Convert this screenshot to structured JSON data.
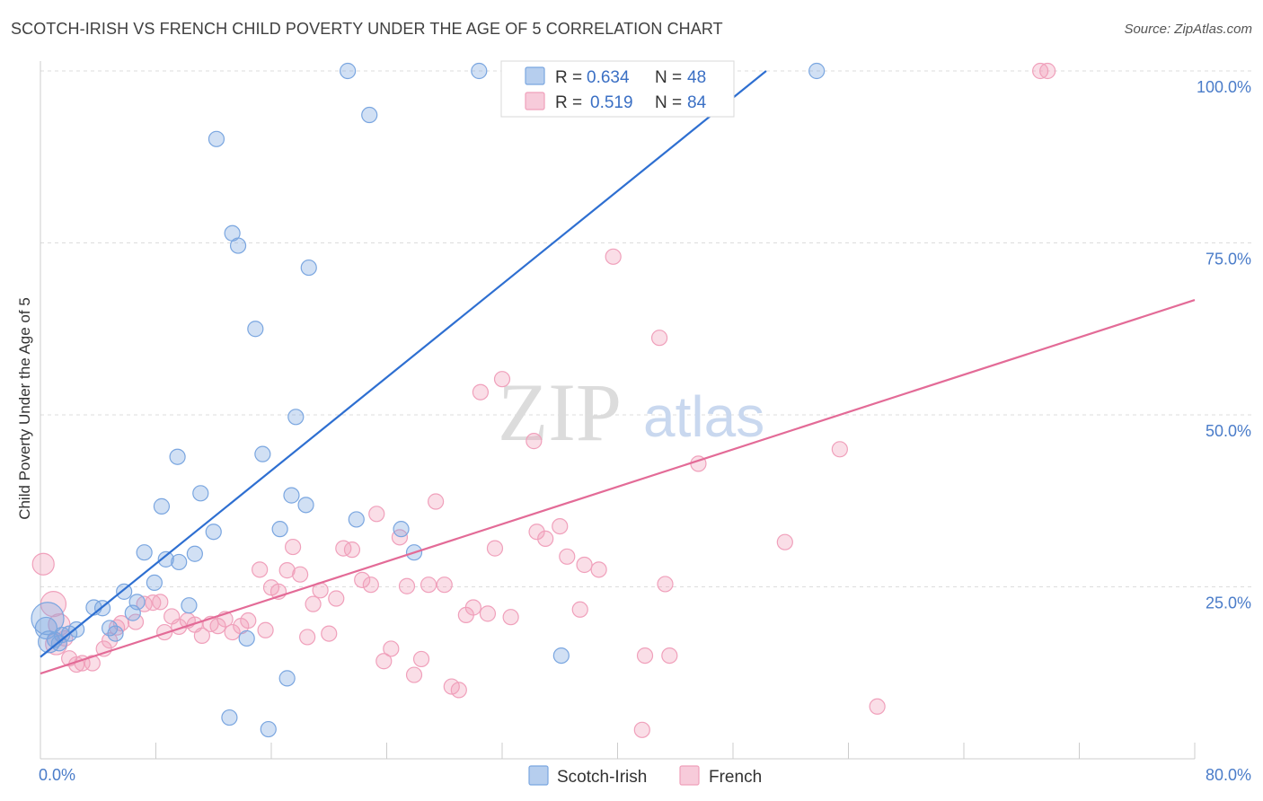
{
  "title": "SCOTCH-IRISH VS FRENCH CHILD POVERTY UNDER THE AGE OF 5 CORRELATION CHART",
  "source": "Source: ZipAtlas.com",
  "watermark": {
    "zip": "ZIP",
    "atlas": "atlas"
  },
  "legend": {
    "r_label": "R =",
    "n_label": "N =",
    "rows": [
      {
        "r": "0.634",
        "n": "48",
        "color": "#7aa6e0"
      },
      {
        "r": "0.519",
        "n": "84",
        "color": "#f0a0bb"
      }
    ]
  },
  "chart_data": {
    "type": "scatter",
    "title": "SCOTCH-IRISH VS FRENCH CHILD POVERTY UNDER THE AGE OF 5 CORRELATION CHART",
    "xlabel": "",
    "ylabel": "Child Poverty Under the Age of 5",
    "xlim": [
      0,
      80
    ],
    "ylim": [
      0,
      100
    ],
    "x_tick_labels": [
      "0.0%",
      "80.0%"
    ],
    "y_tick_labels": [
      "25.0%",
      "50.0%",
      "75.0%",
      "100.0%"
    ],
    "y_ticks": [
      25,
      50,
      75,
      100
    ],
    "grid": true,
    "legend_placement": "bottom-center",
    "series": [
      {
        "name": "Scotch-Irish",
        "color": "#7aa6e0",
        "trend": {
          "x": [
            0,
            50.3
          ],
          "y": [
            14.8,
            100
          ]
        },
        "points": [
          [
            0.5,
            20.4,
            18
          ],
          [
            0.4,
            19.0,
            12
          ],
          [
            0.6,
            17.0,
            12
          ],
          [
            1.0,
            17.3,
            10
          ],
          [
            1.3,
            16.8,
            10
          ],
          [
            1.5,
            18.0,
            10
          ],
          [
            2.0,
            18.2,
            10
          ],
          [
            2.5,
            18.8,
            10
          ],
          [
            3.7,
            22.0,
            10
          ],
          [
            4.3,
            21.9,
            10
          ],
          [
            4.8,
            19.0,
            10
          ],
          [
            5.2,
            18.2,
            10
          ],
          [
            5.8,
            24.3,
            10
          ],
          [
            6.4,
            21.2,
            10
          ],
          [
            6.7,
            22.8,
            10
          ],
          [
            7.2,
            30.0,
            10
          ],
          [
            7.9,
            25.6,
            10
          ],
          [
            8.4,
            36.7,
            10
          ],
          [
            8.7,
            29.0,
            10
          ],
          [
            9.6,
            28.6,
            10
          ],
          [
            9.5,
            43.9,
            10
          ],
          [
            10.3,
            22.3,
            10
          ],
          [
            10.7,
            29.8,
            10
          ],
          [
            11.1,
            38.6,
            10
          ],
          [
            12.0,
            33.0,
            10
          ],
          [
            12.2,
            90.1,
            10
          ],
          [
            13.1,
            6.0,
            10
          ],
          [
            13.3,
            76.4,
            10
          ],
          [
            13.7,
            74.6,
            10
          ],
          [
            14.3,
            17.5,
            10
          ],
          [
            14.9,
            62.5,
            10
          ],
          [
            15.4,
            44.3,
            10
          ],
          [
            15.8,
            4.3,
            10
          ],
          [
            16.6,
            33.4,
            10
          ],
          [
            17.1,
            11.7,
            10
          ],
          [
            17.4,
            38.3,
            10
          ],
          [
            17.7,
            49.7,
            10
          ],
          [
            18.4,
            36.9,
            10
          ],
          [
            18.6,
            71.4,
            10
          ],
          [
            21.3,
            100.0,
            10
          ],
          [
            21.9,
            34.8,
            10
          ],
          [
            22.8,
            93.6,
            10
          ],
          [
            25.0,
            33.4,
            10
          ],
          [
            25.9,
            30.0,
            10
          ],
          [
            30.4,
            100.0,
            10
          ],
          [
            36.1,
            15.0,
            10
          ],
          [
            38.0,
            100.0,
            10
          ],
          [
            53.8,
            100.0,
            10
          ]
        ]
      },
      {
        "name": "French",
        "color": "#f0a0bb",
        "trend": {
          "x": [
            0,
            80
          ],
          "y": [
            12.4,
            66.7
          ]
        },
        "points": [
          [
            0.2,
            28.3,
            12
          ],
          [
            0.9,
            22.5,
            14
          ],
          [
            1.1,
            16.7,
            12
          ],
          [
            1.3,
            19.5,
            12
          ],
          [
            1.7,
            17.5,
            10
          ],
          [
            2.0,
            14.6,
            10
          ],
          [
            2.5,
            13.7,
            10
          ],
          [
            2.9,
            13.9,
            10
          ],
          [
            3.6,
            13.9,
            10
          ],
          [
            4.4,
            16.0,
            10
          ],
          [
            4.8,
            17.2,
            10
          ],
          [
            5.3,
            19.1,
            10
          ],
          [
            5.6,
            19.7,
            10
          ],
          [
            6.6,
            19.9,
            10
          ],
          [
            7.2,
            22.5,
            10
          ],
          [
            7.8,
            22.7,
            10
          ],
          [
            8.3,
            22.8,
            10
          ],
          [
            8.6,
            18.4,
            10
          ],
          [
            9.1,
            20.7,
            10
          ],
          [
            9.6,
            19.2,
            10
          ],
          [
            10.2,
            20.1,
            10
          ],
          [
            10.7,
            19.5,
            10
          ],
          [
            11.2,
            17.9,
            10
          ],
          [
            11.8,
            19.6,
            10
          ],
          [
            12.3,
            19.3,
            10
          ],
          [
            12.8,
            20.3,
            10
          ],
          [
            13.3,
            18.4,
            10
          ],
          [
            13.9,
            19.3,
            10
          ],
          [
            14.4,
            20.1,
            10
          ],
          [
            15.2,
            27.5,
            10
          ],
          [
            15.6,
            18.7,
            10
          ],
          [
            16.0,
            24.9,
            10
          ],
          [
            16.5,
            24.3,
            10
          ],
          [
            17.1,
            27.4,
            10
          ],
          [
            17.5,
            30.8,
            10
          ],
          [
            18.0,
            26.8,
            10
          ],
          [
            18.5,
            17.7,
            10
          ],
          [
            18.9,
            22.5,
            10
          ],
          [
            19.4,
            24.5,
            10
          ],
          [
            20.0,
            18.2,
            10
          ],
          [
            20.5,
            23.3,
            10
          ],
          [
            21.0,
            30.6,
            10
          ],
          [
            21.6,
            30.4,
            10
          ],
          [
            22.3,
            26.0,
            10
          ],
          [
            22.9,
            25.3,
            10
          ],
          [
            23.3,
            35.6,
            10
          ],
          [
            23.8,
            14.2,
            10
          ],
          [
            24.3,
            16.0,
            10
          ],
          [
            24.9,
            32.2,
            10
          ],
          [
            25.4,
            25.1,
            10
          ],
          [
            25.9,
            12.2,
            10
          ],
          [
            26.4,
            14.5,
            10
          ],
          [
            26.9,
            25.3,
            10
          ],
          [
            27.4,
            37.4,
            10
          ],
          [
            28.0,
            25.3,
            10
          ],
          [
            28.5,
            10.5,
            10
          ],
          [
            29.0,
            10.0,
            10
          ],
          [
            29.5,
            20.9,
            10
          ],
          [
            30.0,
            22.0,
            10
          ],
          [
            30.5,
            53.3,
            10
          ],
          [
            31.0,
            21.1,
            10
          ],
          [
            31.5,
            30.6,
            10
          ],
          [
            32.0,
            55.2,
            10
          ],
          [
            32.6,
            20.6,
            10
          ],
          [
            34.2,
            46.2,
            10
          ],
          [
            34.4,
            33.0,
            10
          ],
          [
            35.0,
            32.0,
            10
          ],
          [
            36.0,
            33.8,
            10
          ],
          [
            36.5,
            29.4,
            10
          ],
          [
            37.4,
            21.7,
            10
          ],
          [
            37.7,
            28.2,
            10
          ],
          [
            38.7,
            27.5,
            10
          ],
          [
            39.7,
            73.0,
            10
          ],
          [
            41.7,
            4.2,
            10
          ],
          [
            41.9,
            15.0,
            10
          ],
          [
            42.9,
            61.2,
            10
          ],
          [
            43.3,
            25.4,
            10
          ],
          [
            43.6,
            15.0,
            10
          ],
          [
            45.6,
            42.9,
            10
          ],
          [
            51.6,
            31.5,
            10
          ],
          [
            55.4,
            45.0,
            10
          ],
          [
            58.0,
            7.6,
            10
          ],
          [
            69.3,
            100.0,
            10
          ],
          [
            69.8,
            100.0,
            10
          ]
        ]
      }
    ]
  },
  "bottom_legend": [
    {
      "label": "Scotch-Irish",
      "color": "#7aa6e0"
    },
    {
      "label": "French",
      "color": "#f0a0bb"
    }
  ]
}
